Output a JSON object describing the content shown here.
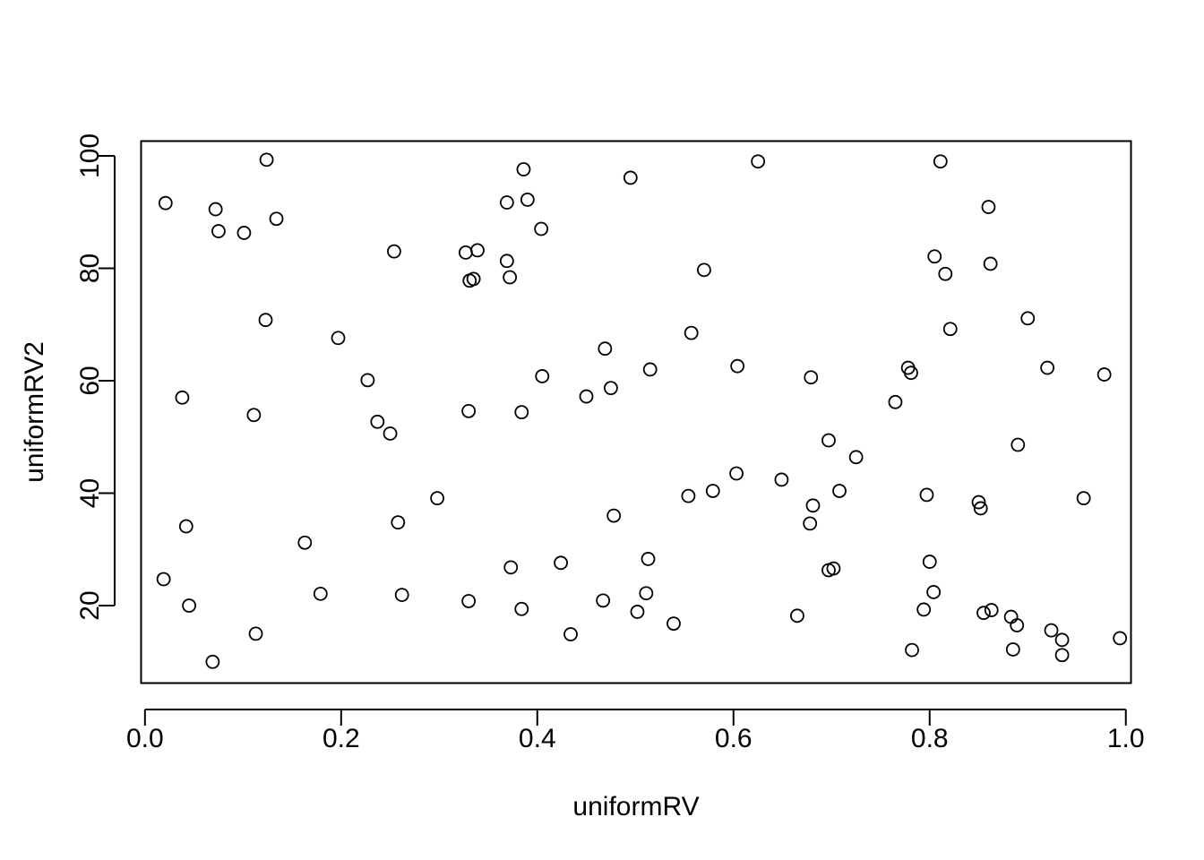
{
  "chart_data": {
    "type": "scatter",
    "title": "",
    "xlabel": "uniformRV",
    "ylabel": "uniformRV2",
    "xlim": [
      -0.0044,
      1.0048
    ],
    "ylim": [
      6.3,
      102.7
    ],
    "x_ticks": [
      0.0,
      0.2,
      0.4,
      0.6,
      0.8,
      1.0
    ],
    "x_tick_labels": [
      "0.0",
      "0.2",
      "0.4",
      "0.6",
      "0.8",
      "1.0"
    ],
    "y_ticks": [
      20,
      40,
      60,
      80,
      100
    ],
    "y_tick_labels": [
      "20",
      "40",
      "60",
      "80",
      "100"
    ],
    "grid": false,
    "marker": "open-circle",
    "points": [
      {
        "x": 0.021,
        "y": 91.6
      },
      {
        "x": 0.072,
        "y": 90.5
      },
      {
        "x": 0.075,
        "y": 86.6
      },
      {
        "x": 0.101,
        "y": 86.3
      },
      {
        "x": 0.124,
        "y": 99.3
      },
      {
        "x": 0.134,
        "y": 88.8
      },
      {
        "x": 0.123,
        "y": 70.8
      },
      {
        "x": 0.038,
        "y": 57.0
      },
      {
        "x": 0.111,
        "y": 53.9
      },
      {
        "x": 0.042,
        "y": 34.1
      },
      {
        "x": 0.019,
        "y": 24.7
      },
      {
        "x": 0.045,
        "y": 20.0
      },
      {
        "x": 0.113,
        "y": 15.0
      },
      {
        "x": 0.069,
        "y": 10.0
      },
      {
        "x": 0.163,
        "y": 31.2
      },
      {
        "x": 0.179,
        "y": 22.1
      },
      {
        "x": 0.197,
        "y": 67.6
      },
      {
        "x": 0.227,
        "y": 60.1
      },
      {
        "x": 0.237,
        "y": 52.7
      },
      {
        "x": 0.25,
        "y": 50.6
      },
      {
        "x": 0.254,
        "y": 83.0
      },
      {
        "x": 0.258,
        "y": 34.8
      },
      {
        "x": 0.262,
        "y": 21.9
      },
      {
        "x": 0.298,
        "y": 39.1
      },
      {
        "x": 0.327,
        "y": 82.8
      },
      {
        "x": 0.339,
        "y": 83.2
      },
      {
        "x": 0.331,
        "y": 77.8
      },
      {
        "x": 0.335,
        "y": 78.1
      },
      {
        "x": 0.33,
        "y": 54.6
      },
      {
        "x": 0.33,
        "y": 20.8
      },
      {
        "x": 0.369,
        "y": 91.7
      },
      {
        "x": 0.386,
        "y": 97.6
      },
      {
        "x": 0.39,
        "y": 92.2
      },
      {
        "x": 0.404,
        "y": 87.0
      },
      {
        "x": 0.369,
        "y": 81.3
      },
      {
        "x": 0.372,
        "y": 78.4
      },
      {
        "x": 0.384,
        "y": 54.4
      },
      {
        "x": 0.405,
        "y": 60.8
      },
      {
        "x": 0.373,
        "y": 26.8
      },
      {
        "x": 0.384,
        "y": 19.4
      },
      {
        "x": 0.424,
        "y": 27.6
      },
      {
        "x": 0.434,
        "y": 14.9
      },
      {
        "x": 0.45,
        "y": 57.2
      },
      {
        "x": 0.469,
        "y": 65.7
      },
      {
        "x": 0.475,
        "y": 58.7
      },
      {
        "x": 0.478,
        "y": 36.0
      },
      {
        "x": 0.467,
        "y": 20.9
      },
      {
        "x": 0.495,
        "y": 96.1
      },
      {
        "x": 0.502,
        "y": 18.9
      },
      {
        "x": 0.511,
        "y": 22.2
      },
      {
        "x": 0.513,
        "y": 28.3
      },
      {
        "x": 0.515,
        "y": 62.0
      },
      {
        "x": 0.539,
        "y": 16.8
      },
      {
        "x": 0.554,
        "y": 39.5
      },
      {
        "x": 0.557,
        "y": 68.5
      },
      {
        "x": 0.57,
        "y": 79.7
      },
      {
        "x": 0.579,
        "y": 40.4
      },
      {
        "x": 0.603,
        "y": 43.5
      },
      {
        "x": 0.604,
        "y": 62.6
      },
      {
        "x": 0.625,
        "y": 99.0
      },
      {
        "x": 0.649,
        "y": 42.4
      },
      {
        "x": 0.665,
        "y": 18.2
      },
      {
        "x": 0.678,
        "y": 34.6
      },
      {
        "x": 0.679,
        "y": 60.6
      },
      {
        "x": 0.681,
        "y": 37.8
      },
      {
        "x": 0.697,
        "y": 26.3
      },
      {
        "x": 0.697,
        "y": 49.4
      },
      {
        "x": 0.702,
        "y": 26.6
      },
      {
        "x": 0.708,
        "y": 40.4
      },
      {
        "x": 0.725,
        "y": 46.4
      },
      {
        "x": 0.765,
        "y": 56.2
      },
      {
        "x": 0.778,
        "y": 62.3
      },
      {
        "x": 0.781,
        "y": 61.4
      },
      {
        "x": 0.782,
        "y": 12.1
      },
      {
        "x": 0.794,
        "y": 19.3
      },
      {
        "x": 0.797,
        "y": 39.7
      },
      {
        "x": 0.8,
        "y": 27.8
      },
      {
        "x": 0.804,
        "y": 22.4
      },
      {
        "x": 0.805,
        "y": 82.1
      },
      {
        "x": 0.811,
        "y": 99.0
      },
      {
        "x": 0.816,
        "y": 79.0
      },
      {
        "x": 0.821,
        "y": 69.2
      },
      {
        "x": 0.85,
        "y": 38.4
      },
      {
        "x": 0.852,
        "y": 37.3
      },
      {
        "x": 0.855,
        "y": 18.7
      },
      {
        "x": 0.86,
        "y": 90.9
      },
      {
        "x": 0.862,
        "y": 80.8
      },
      {
        "x": 0.863,
        "y": 19.2
      },
      {
        "x": 0.883,
        "y": 18.0
      },
      {
        "x": 0.885,
        "y": 12.2
      },
      {
        "x": 0.889,
        "y": 16.5
      },
      {
        "x": 0.89,
        "y": 48.6
      },
      {
        "x": 0.9,
        "y": 71.1
      },
      {
        "x": 0.92,
        "y": 62.3
      },
      {
        "x": 0.924,
        "y": 15.6
      },
      {
        "x": 0.935,
        "y": 13.9
      },
      {
        "x": 0.935,
        "y": 11.2
      },
      {
        "x": 0.957,
        "y": 39.1
      },
      {
        "x": 0.978,
        "y": 61.1
      },
      {
        "x": 0.994,
        "y": 14.2
      }
    ]
  }
}
